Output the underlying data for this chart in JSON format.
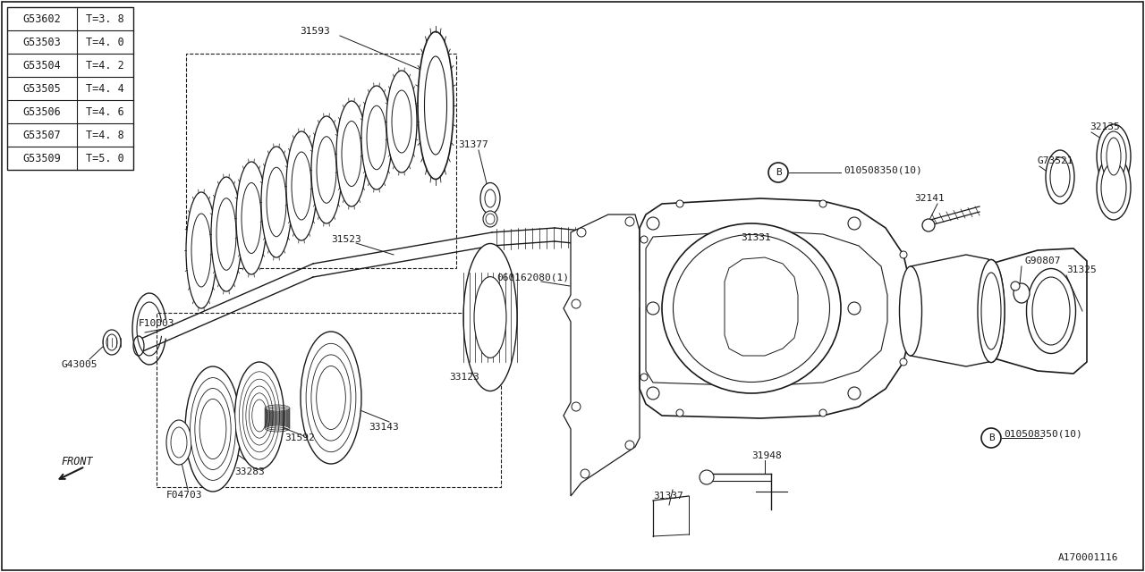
{
  "bg_color": "#ffffff",
  "line_color": "#1a1a1a",
  "table_data": [
    [
      "G53602",
      "T=3. 8"
    ],
    [
      "G53503",
      "T=4. 0"
    ],
    [
      "G53504",
      "T=4. 2"
    ],
    [
      "G53505",
      "T=4. 4"
    ],
    [
      "G53506",
      "T=4. 6"
    ],
    [
      "G53507",
      "T=4. 8"
    ],
    [
      "G53509",
      "T=5. 0"
    ]
  ],
  "diagram_number": "A170001116"
}
